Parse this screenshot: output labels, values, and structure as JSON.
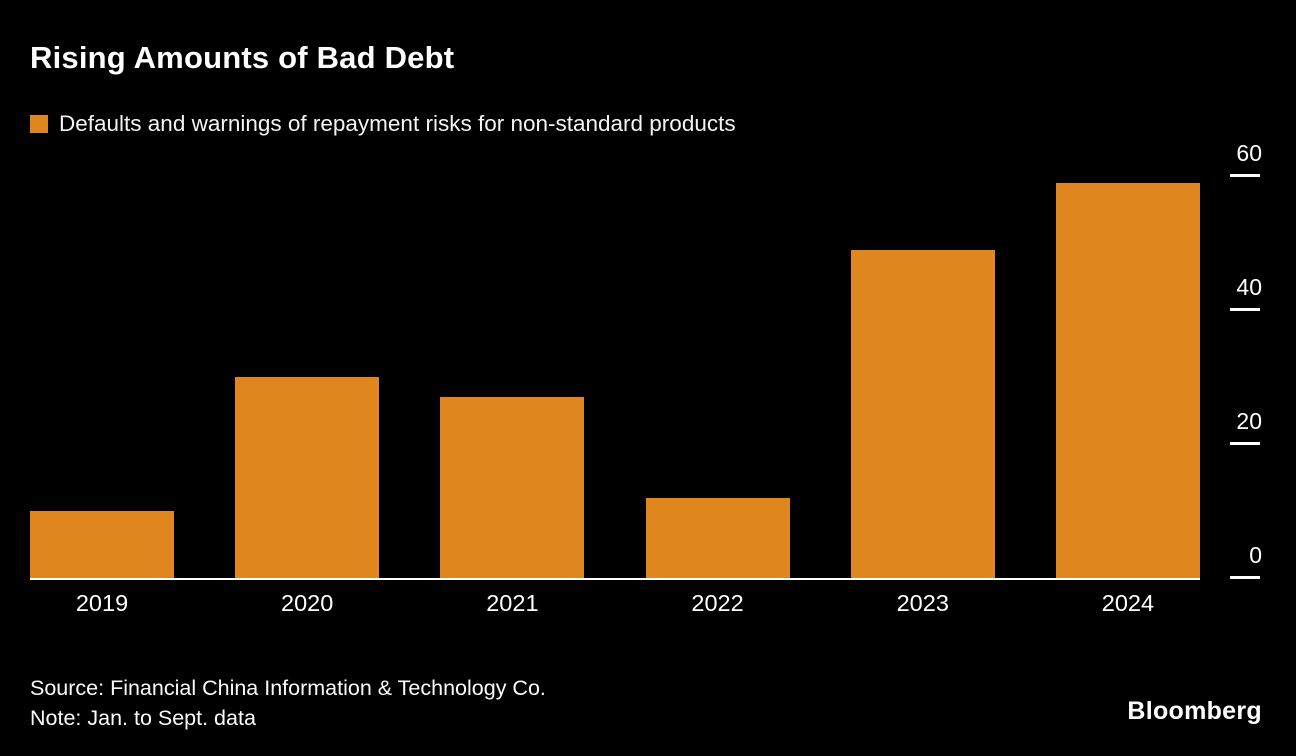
{
  "chart_data": {
    "type": "bar",
    "title": "Rising Amounts of Bad Debt",
    "legend": "Defaults and warnings of repayment risks for non-standard products",
    "categories": [
      "2019",
      "2020",
      "2021",
      "2022",
      "2023",
      "2024"
    ],
    "values": [
      10,
      30,
      27,
      12,
      49,
      59
    ],
    "yticks": [
      0,
      20,
      40,
      60
    ],
    "ylim": [
      0,
      62
    ],
    "y_axis_side": "right",
    "grid": false,
    "legend_position": "top-left",
    "bar_color": "#E0861E",
    "background_color": "#000000",
    "text_color": "#FFFFFF"
  },
  "footer": {
    "source": "Source: Financial China Information & Technology Co.",
    "note": "Note: Jan. to Sept. data",
    "brand": "Bloomberg"
  }
}
